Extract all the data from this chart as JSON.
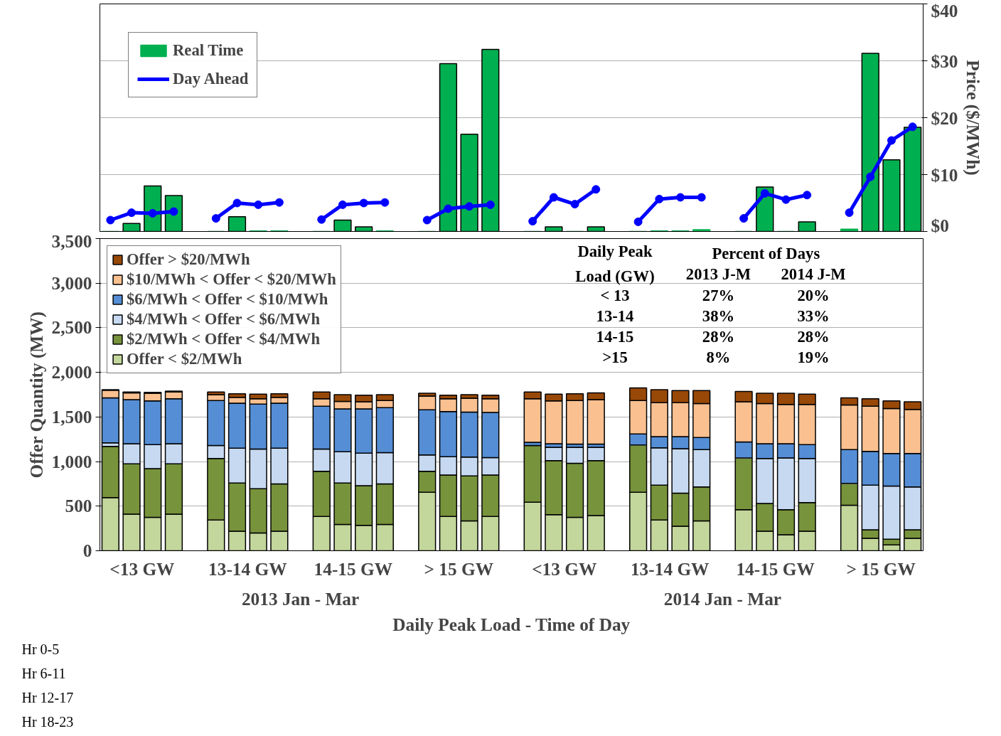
{
  "chart_data": [
    {
      "type": "bar",
      "categories": [
        null,
        null,
        null,
        null,
        null,
        null,
        null,
        null,
        null,
        null,
        null,
        null,
        null,
        null,
        null,
        null,
        null,
        null,
        null,
        null,
        null,
        null,
        null,
        null,
        null,
        null,
        null,
        null,
        null,
        null,
        null,
        null,
        null,
        null,
        null,
        null,
        null,
        null,
        null
      ],
      "y2label": "Price ($/MWh)",
      "y2lim": [
        0,
        40
      ],
      "y2ticks": [
        {
          "value": 0,
          "label": "$0"
        },
        {
          "value": 10,
          "label": "$10"
        },
        {
          "value": 20,
          "label": "$20"
        },
        {
          "value": 30,
          "label": "$30"
        },
        {
          "value": 40,
          "label": "$40"
        }
      ],
      "tick_labels": "y2",
      "grid": "y",
      "legend": "top left",
      "series": [
        {
          "name": "Real Time",
          "type": "bar",
          "axis": "y2",
          "color": "#00b050",
          "values": [
            0,
            1.4,
            8.0,
            6.3,
            null,
            0,
            2.6,
            0.1,
            0.1,
            null,
            0,
            2.0,
            0.8,
            0.1,
            null,
            0,
            29.5,
            17.1,
            32.0,
            null,
            0,
            0.8,
            0,
            0.8,
            null,
            0,
            0.1,
            0.1,
            0.3,
            null,
            0,
            7.8,
            0,
            1.7,
            null,
            0.4,
            31.3,
            12.6,
            18.3
          ]
        },
        {
          "name": "Day Ahead",
          "type": "line",
          "axis": "y2",
          "color": "#0000ff",
          "marker": "circle",
          "values": [
            2.0,
            3.3,
            3.2,
            3.5,
            null,
            2.3,
            5.0,
            4.7,
            5.1,
            null,
            2.1,
            4.7,
            5.0,
            5.1,
            null,
            2.0,
            4.0,
            4.4,
            4.7,
            null,
            1.8,
            6.0,
            4.8,
            7.4,
            null,
            1.7,
            5.7,
            6.0,
            6.0,
            null,
            2.3,
            6.7,
            5.6,
            6.4,
            null,
            3.3,
            9.6,
            16.0,
            18.4
          ]
        }
      ]
    },
    {
      "type": "bar",
      "stacked": true,
      "categories": [
        null,
        null,
        null,
        null,
        null,
        null,
        null,
        null,
        null,
        null,
        null,
        null,
        null,
        null,
        null,
        null,
        null,
        null,
        null,
        null,
        null,
        null,
        null,
        null,
        null,
        null,
        null,
        null,
        null,
        null,
        null,
        null,
        null,
        null,
        null,
        null,
        null,
        null,
        null
      ],
      "xlabel": "Daily Peak Load - Time of Day",
      "ylabel": "Offer Quantity (MW)",
      "ylim": [
        0,
        3500
      ],
      "yticks": [
        0,
        {
          "value": 500,
          "label": "500"
        },
        {
          "value": 1000,
          "label": "1,000"
        },
        {
          "value": 1500,
          "label": "1,500"
        },
        {
          "value": 2000,
          "label": "2,000"
        },
        {
          "value": 2500,
          "label": "2,500"
        },
        {
          "value": 3000,
          "label": "3,000"
        },
        {
          "value": 3500,
          "label": "3,500"
        }
      ],
      "tick_labels": "y",
      "grid": "y",
      "legend": "top left",
      "annotations": [
        "<13 GW",
        "13-14 GW",
        "14-15 GW",
        "> 15 GW",
        "<13 GW",
        "13-14 GW",
        "14-15 GW",
        "> 15 GW",
        "2013 Jan - Mar",
        "2014 Jan - Mar",
        "Hr 0-5",
        "Hr 6-11",
        "Hr 12-17",
        "Hr 18-23",
        "Daily Peak Load (GW)",
        "Percent of Days",
        "2013 J-M",
        "2014 J-M",
        "< 13",
        "27%",
        "20%",
        "13-14",
        "38%",
        "33%",
        "14-15",
        "28%",
        "28%",
        ">15",
        "8%",
        "19%"
      ],
      "series": [
        {
          "name": "Offer < $2/MWh",
          "color": "#c3d69b",
          "values": [
            595,
            410,
            375,
            410,
            null,
            345,
            220,
            200,
            220,
            null,
            385,
            295,
            285,
            295,
            null,
            655,
            385,
            335,
            385,
            null,
            545,
            405,
            375,
            395,
            null,
            655,
            345,
            275,
            335,
            null,
            460,
            220,
            180,
            220,
            null,
            510,
            140,
            65,
            140
          ]
        },
        {
          "name": "$2/MWh < Offer < $4/MWh",
          "color": "#77933c",
          "values": [
            575,
            565,
            545,
            565,
            null,
            690,
            540,
            495,
            530,
            null,
            505,
            465,
            445,
            455,
            null,
            235,
            465,
            505,
            465,
            null,
            635,
            605,
            605,
            615,
            null,
            530,
            390,
            370,
            380,
            null,
            580,
            310,
            280,
            320,
            null,
            245,
            95,
            65,
            95
          ]
        },
        {
          "name": "$4/MWh < Offer < $6/MWh",
          "color": "#c6d9f1",
          "values": [
            40,
            225,
            270,
            225,
            null,
            145,
            390,
            445,
            400,
            null,
            250,
            350,
            365,
            350,
            null,
            185,
            205,
            210,
            195,
            null,
            null,
            150,
            180,
            150,
            null,
            0,
            420,
            500,
            420,
            null,
            0,
            505,
            580,
            495,
            null,
            0,
            500,
            595,
            480
          ]
        },
        {
          "name": "$6/MWh < Offer < $10/MWh",
          "color": "#558ed5",
          "values": [
            505,
            495,
            490,
            505,
            null,
            505,
            505,
            505,
            505,
            null,
            480,
            480,
            495,
            505,
            null,
            505,
            505,
            505,
            505,
            null,
            35,
            40,
            35,
            35,
            null,
            125,
            125,
            135,
            135,
            null,
            180,
            165,
            160,
            155,
            null,
            380,
            380,
            365,
            375
          ]
        },
        {
          "name": "$10/MWh < Offer < $20/MWh",
          "color": "#fac090",
          "values": [
            85,
            75,
            85,
            75,
            null,
            65,
            65,
            60,
            65,
            null,
            85,
            85,
            80,
            80,
            null,
            155,
            145,
            155,
            155,
            null,
            490,
            480,
            490,
            500,
            null,
            375,
            380,
            380,
            380,
            null,
            450,
            450,
            440,
            450,
            null,
            500,
            505,
            505,
            495
          ]
        },
        {
          "name": "Offer > $20/MWh",
          "color": "#984807",
          "values": [
            5,
            10,
            10,
            10,
            null,
            30,
            40,
            50,
            40,
            null,
            75,
            75,
            75,
            65,
            null,
            30,
            40,
            40,
            40,
            null,
            75,
            75,
            75,
            75,
            null,
            140,
            145,
            135,
            145,
            null,
            115,
            115,
            125,
            115,
            null,
            80,
            85,
            85,
            85
          ]
        }
      ]
    }
  ]
}
